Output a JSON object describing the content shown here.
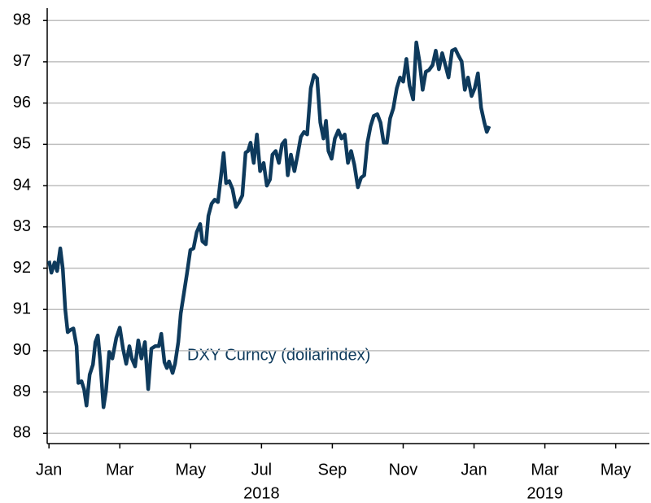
{
  "chart_data": {
    "type": "line",
    "annotation": "DXY Curncy (dollarindex)",
    "color": "#0e3a5c",
    "grid": true,
    "xlim": [
      -0.05,
      16.95
    ],
    "ylim": [
      87.75,
      98.3
    ],
    "yticks": [
      88,
      89,
      90,
      91,
      92,
      93,
      94,
      95,
      96,
      97,
      98
    ],
    "xticks": [
      {
        "value": 0,
        "label": "Jan"
      },
      {
        "value": 2,
        "label": "Mar"
      },
      {
        "value": 4,
        "label": "May"
      },
      {
        "value": 6,
        "label": "Jul"
      },
      {
        "value": 8,
        "label": "Sep"
      },
      {
        "value": 10,
        "label": "Nov"
      },
      {
        "value": 12,
        "label": "Jan"
      },
      {
        "value": 14,
        "label": "Mar"
      },
      {
        "value": 16,
        "label": "May"
      }
    ],
    "year_labels": [
      {
        "value": 6,
        "label": "2018"
      },
      {
        "value": 14,
        "label": "2019"
      }
    ],
    "x": [
      0,
      0.07,
      0.16,
      0.23,
      0.32,
      0.39,
      0.46,
      0.53,
      0.6,
      0.69,
      0.78,
      0.83,
      0.92,
      0.99,
      1.06,
      1.15,
      1.24,
      1.31,
      1.38,
      1.44,
      1.54,
      1.61,
      1.7,
      1.79,
      1.9,
      2.0,
      2.09,
      2.18,
      2.27,
      2.34,
      2.43,
      2.52,
      2.61,
      2.71,
      2.8,
      2.89,
      3.0,
      3.1,
      3.17,
      3.26,
      3.33,
      3.39,
      3.49,
      3.56,
      3.65,
      3.72,
      3.81,
      3.9,
      3.99,
      4.08,
      4.17,
      4.27,
      4.33,
      4.43,
      4.5,
      4.59,
      4.68,
      4.77,
      4.86,
      4.93,
      5.0,
      5.09,
      5.18,
      5.28,
      5.37,
      5.46,
      5.55,
      5.62,
      5.69,
      5.78,
      5.87,
      5.96,
      6.06,
      6.15,
      6.24,
      6.31,
      6.4,
      6.49,
      6.58,
      6.67,
      6.74,
      6.83,
      6.93,
      7.02,
      7.11,
      7.2,
      7.29,
      7.39,
      7.48,
      7.57,
      7.66,
      7.75,
      7.82,
      7.89,
      7.98,
      8.07,
      8.17,
      8.26,
      8.35,
      8.44,
      8.53,
      8.62,
      8.72,
      8.81,
      8.9,
      8.99,
      9.08,
      9.17,
      9.27,
      9.36,
      9.45,
      9.54,
      9.63,
      9.72,
      9.82,
      9.91,
      10.0,
      10.09,
      10.18,
      10.28,
      10.37,
      10.46,
      10.55,
      10.64,
      10.73,
      10.83,
      10.92,
      11.01,
      11.1,
      11.19,
      11.28,
      11.38,
      11.47,
      11.56,
      11.65,
      11.74,
      11.83,
      11.93,
      12.02,
      12.11,
      12.2,
      12.29,
      12.36,
      12.43
    ],
    "values": [
      92.18,
      91.89,
      92.14,
      91.93,
      92.48,
      91.98,
      91.0,
      90.45,
      90.5,
      90.54,
      90.11,
      89.22,
      89.26,
      89.07,
      88.67,
      89.42,
      89.66,
      90.21,
      90.37,
      89.81,
      88.63,
      89.03,
      89.97,
      89.81,
      90.31,
      90.56,
      90.05,
      89.68,
      90.11,
      89.81,
      89.62,
      90.25,
      89.81,
      90.21,
      89.07,
      90.05,
      90.11,
      90.11,
      90.41,
      89.72,
      89.58,
      89.74,
      89.46,
      89.68,
      90.21,
      90.9,
      91.39,
      91.89,
      92.44,
      92.48,
      92.87,
      93.07,
      92.65,
      92.58,
      93.27,
      93.56,
      93.66,
      93.6,
      94.25,
      94.79,
      94.06,
      94.11,
      93.92,
      93.48,
      93.6,
      93.76,
      94.8,
      94.84,
      95.04,
      94.55,
      95.24,
      94.35,
      94.55,
      94.0,
      94.15,
      94.75,
      94.84,
      94.55,
      95.0,
      95.1,
      94.25,
      94.75,
      94.35,
      94.75,
      95.18,
      95.3,
      95.24,
      96.36,
      96.68,
      96.6,
      95.53,
      95.14,
      95.57,
      94.84,
      94.65,
      95.14,
      95.34,
      95.14,
      95.24,
      94.55,
      94.84,
      94.51,
      93.96,
      94.19,
      94.25,
      95.04,
      95.44,
      95.69,
      95.73,
      95.53,
      95.04,
      95.04,
      95.63,
      95.87,
      96.36,
      96.62,
      96.52,
      97.07,
      96.42,
      96.09,
      97.47,
      97.01,
      96.32,
      96.76,
      96.8,
      96.92,
      97.27,
      96.82,
      97.21,
      96.92,
      96.62,
      97.27,
      97.31,
      97.15,
      97.01,
      96.32,
      96.62,
      96.17,
      96.36,
      96.72,
      95.89,
      95.53,
      95.3,
      95.44
    ]
  }
}
